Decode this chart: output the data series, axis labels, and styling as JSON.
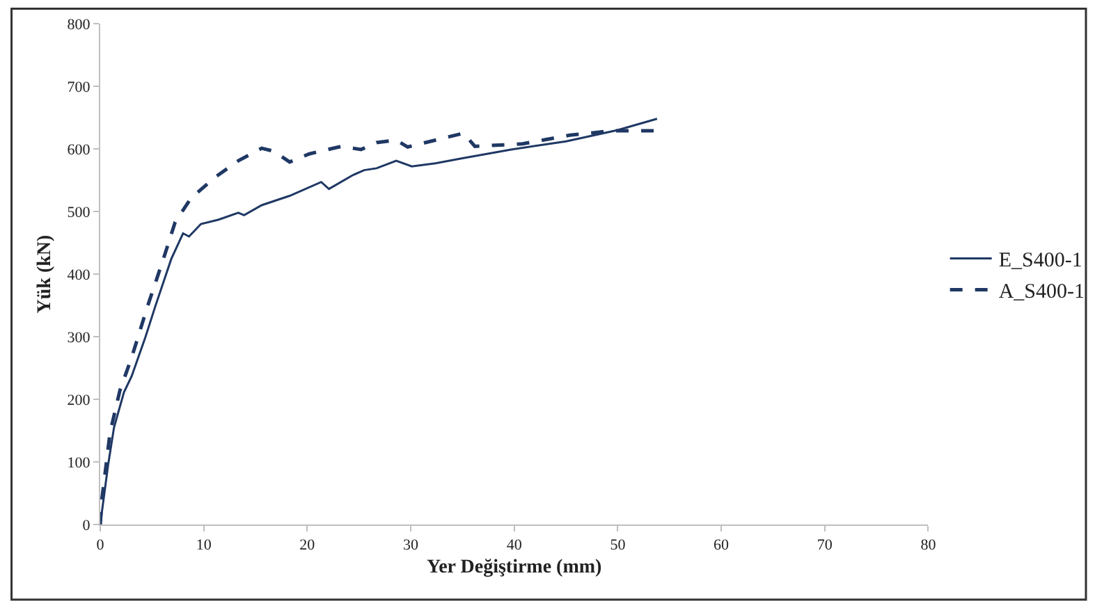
{
  "chart_data": {
    "type": "line",
    "xlabel": "Yer Değiştirme (mm)",
    "ylabel": "Yük (kN)",
    "xlim": [
      0,
      80
    ],
    "xticks": [
      0,
      10,
      20,
      30,
      40,
      50,
      60,
      70,
      80
    ],
    "ylim": [
      0,
      800
    ],
    "yticks": [
      0,
      100,
      200,
      300,
      400,
      500,
      600,
      700,
      800
    ],
    "legend": "right",
    "marker": "none",
    "series": [
      {
        "name": "E_S400-1",
        "color": "#1f3864",
        "line_style": "solid",
        "x": [
          0,
          0.76,
          1.33,
          2.29,
          3.04,
          4.38,
          5.33,
          6.86,
          8.0,
          8.58,
          9.73,
          11.44,
          13.34,
          13.9,
          15.6,
          18.3,
          21.35,
          22.1,
          24.4,
          25.5,
          26.7,
          28.6,
          30.1,
          32.4,
          35,
          39.7,
          45,
          50,
          53.8
        ],
        "values": [
          0,
          95,
          155,
          211,
          237,
          300,
          349,
          424,
          465,
          460,
          480,
          487,
          498,
          494,
          510,
          525,
          547,
          536,
          558,
          566,
          569,
          581,
          572,
          577,
          585,
          599,
          612,
          630,
          648
        ]
      },
      {
        "name": "A_S400-1",
        "color": "#1f3864",
        "line_style": "dashed",
        "x": [
          0,
          0.18,
          0.95,
          1.9,
          3.04,
          4.58,
          6.1,
          7.24,
          8.76,
          11.05,
          13.34,
          15.6,
          16.8,
          18.3,
          20.2,
          23.3,
          25.2,
          26.7,
          28.6,
          29.7,
          35.1,
          36.2,
          40.8,
          45.4,
          49.6,
          53.8
        ],
        "values": [
          0,
          43,
          147,
          214,
          267,
          349,
          424,
          483,
          521,
          554,
          581,
          601,
          596,
          579,
          592,
          604,
          599,
          610,
          614,
          603,
          625,
          604,
          608,
          622,
          629,
          629
        ]
      }
    ]
  }
}
